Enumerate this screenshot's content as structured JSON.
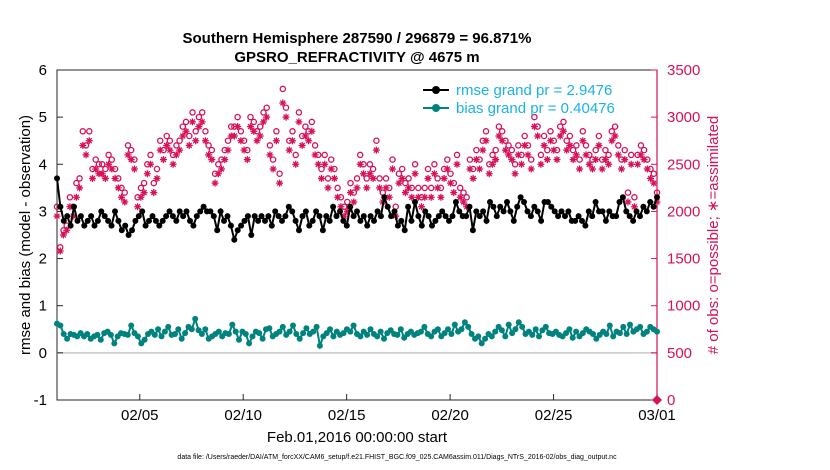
{
  "colors": {
    "rmse": "#000000",
    "bias": "#00837e",
    "obs": "#d6115a",
    "legend_text": "#1ab3e6",
    "zero_line": "#c8c8c8",
    "axis": "#262626"
  },
  "chart_data": {
    "type": "line",
    "title": "Southern Hemisphere 287590 / 296879 = 96.871%",
    "subtitle": "GPSRO_REFRACTIVITY @ 4675 m",
    "xlabel": "Feb.01,2016 00:00:00 start",
    "ylabel_left": "rmse and bias (model - observation)",
    "ylabel_right": "# of obs: o=possible; ∗=assimilated",
    "footnote": "data file: /Users/raeder/DAI/ATM_forcXX/CAM6_setup/f.e21.FHIST_BGC.f09_025.CAM6assim.011/Diags_NTrS_2016-02/obs_diag_output.nc",
    "x_range_days": [
      0,
      29
    ],
    "x_ticks": [
      {
        "day": 4,
        "label": "02/05"
      },
      {
        "day": 9,
        "label": "02/10"
      },
      {
        "day": 14,
        "label": "02/15"
      },
      {
        "day": 19,
        "label": "02/20"
      },
      {
        "day": 24,
        "label": "02/25"
      },
      {
        "day": 29,
        "label": "03/01"
      }
    ],
    "ylim_left": [
      -1,
      6
    ],
    "yticks_left": [
      "-1",
      "0",
      "1",
      "2",
      "3",
      "4",
      "5",
      "6"
    ],
    "ylim_right": [
      0,
      3500
    ],
    "yticks_right": [
      "0",
      "500",
      "1000",
      "1500",
      "2000",
      "2500",
      "3000",
      "3500"
    ],
    "legend_position": "top-right",
    "series": [
      {
        "name": "rmse grand pr = 2.9476",
        "marker": "filled-circle",
        "axis": "left",
        "values": [
          3.7,
          3.1,
          2.8,
          2.9,
          2.7,
          3.1,
          2.8,
          2.9,
          2.7,
          2.8,
          2.9,
          2.7,
          2.8,
          3.0,
          2.9,
          2.8,
          2.7,
          3.0,
          2.8,
          2.6,
          2.7,
          2.5,
          2.6,
          2.8,
          2.9,
          3.0,
          2.7,
          2.8,
          2.9,
          2.8,
          2.7,
          2.8,
          2.9,
          3.0,
          2.9,
          2.8,
          3.0,
          2.9,
          3.0,
          2.8,
          2.7,
          2.9,
          3.0,
          3.1,
          3.0,
          3.0,
          2.9,
          2.6,
          3.0,
          2.8,
          2.9,
          2.7,
          2.4,
          2.6,
          2.7,
          2.8,
          2.9,
          2.5,
          2.9,
          2.8,
          2.9,
          2.8,
          2.9,
          2.7,
          3.0,
          2.9,
          2.8,
          2.9,
          3.1,
          3.0,
          2.8,
          2.6,
          2.9,
          3.0,
          2.7,
          2.8,
          3.0,
          2.9,
          2.6,
          2.9,
          2.8,
          3.1,
          2.9,
          3.0,
          2.8,
          2.7,
          3.1,
          2.9,
          3.0,
          2.8,
          2.9,
          2.7,
          2.9,
          2.8,
          3.0,
          2.9,
          3.3,
          3.1,
          2.9,
          3.0,
          2.7,
          2.8,
          2.6,
          3.1,
          2.8,
          3.2,
          2.9,
          2.7,
          3.0,
          2.9,
          2.7,
          2.8,
          2.9,
          3.0,
          2.9,
          2.8,
          2.9,
          3.2,
          3.0,
          2.9,
          2.9,
          3.1,
          2.6,
          3.0,
          2.9,
          3.0,
          2.8,
          3.2,
          3.1,
          2.9,
          3.1,
          3.0,
          3.2,
          3.0,
          2.8,
          3.1,
          3.3,
          3.2,
          3.0,
          2.9,
          3.1,
          3.0,
          2.8,
          3.2,
          3.2,
          3.1,
          3.0,
          2.9,
          3.0,
          2.9,
          3.0,
          2.8,
          2.8,
          2.9,
          2.8,
          2.7,
          3.0,
          2.9,
          3.2,
          3.0,
          3.0,
          2.8,
          3.0,
          2.9,
          2.9,
          3.2,
          3.3,
          3.0,
          2.9,
          2.8,
          3.0,
          2.9,
          3.1,
          3.0,
          3.2,
          3.1,
          3.3
        ]
      },
      {
        "name": "bias grand pr = 0.40476",
        "marker": "filled-circle",
        "axis": "left",
        "values": [
          0.62,
          0.58,
          0.4,
          0.3,
          0.4,
          0.38,
          0.35,
          0.42,
          0.35,
          0.4,
          0.3,
          0.35,
          0.38,
          0.28,
          0.42,
          0.45,
          0.38,
          0.2,
          0.35,
          0.42,
          0.4,
          0.38,
          0.58,
          0.42,
          0.35,
          0.2,
          0.28,
          0.4,
          0.45,
          0.38,
          0.5,
          0.35,
          0.45,
          0.55,
          0.38,
          0.4,
          0.5,
          0.3,
          0.42,
          0.55,
          0.5,
          0.72,
          0.48,
          0.4,
          0.5,
          0.3,
          0.35,
          0.4,
          0.45,
          0.35,
          0.42,
          0.4,
          0.6,
          0.45,
          0.28,
          0.45,
          0.4,
          0.2,
          0.35,
          0.45,
          0.42,
          0.3,
          0.5,
          0.52,
          0.35,
          0.4,
          0.45,
          0.55,
          0.38,
          0.45,
          0.58,
          0.4,
          0.3,
          0.42,
          0.52,
          0.4,
          0.45,
          0.55,
          0.15,
          0.35,
          0.42,
          0.5,
          0.35,
          0.45,
          0.38,
          0.42,
          0.5,
          0.45,
          0.58,
          0.4,
          0.35,
          0.45,
          0.38,
          0.5,
          0.4,
          0.35,
          0.45,
          0.3,
          0.42,
          0.48,
          0.4,
          0.38,
          0.5,
          0.32,
          0.4,
          0.45,
          0.38,
          0.42,
          0.45,
          0.55,
          0.4,
          0.35,
          0.45,
          0.5,
          0.35,
          0.42,
          0.5,
          0.4,
          0.6,
          0.45,
          0.5,
          0.65,
          0.55,
          0.4,
          0.3,
          0.35,
          0.2,
          0.3,
          0.4,
          0.35,
          0.45,
          0.55,
          0.48,
          0.35,
          0.6,
          0.42,
          0.5,
          0.65,
          0.55,
          0.4,
          0.45,
          0.38,
          0.5,
          0.35,
          0.48,
          0.55,
          0.42,
          0.4,
          0.45,
          0.38,
          0.35,
          0.42,
          0.5,
          0.32,
          0.45,
          0.35,
          0.42,
          0.5,
          0.45,
          0.4,
          0.3,
          0.38,
          0.45,
          0.4,
          0.58,
          0.35,
          0.45,
          0.42,
          0.55,
          0.4,
          0.6,
          0.45,
          0.5,
          0.55,
          0.4,
          0.45,
          0.55,
          0.5,
          0.45
        ]
      },
      {
        "name": "possible",
        "marker": "circle",
        "axis": "right",
        "values": [
          2050,
          1620,
          1800,
          1850,
          2150,
          2050,
          2300,
          2350,
          2850,
          2700,
          2850,
          2450,
          2550,
          2500,
          2500,
          2450,
          2600,
          2550,
          2450,
          2350,
          2250,
          2200,
          2700,
          2650,
          2550,
          2150,
          2250,
          2300,
          2500,
          2600,
          2300,
          2450,
          2750,
          2650,
          2800,
          2750,
          2600,
          2700,
          2750,
          2900,
          2950,
          2800,
          3050,
          2850,
          3000,
          3050,
          2850,
          2700,
          2650,
          2400,
          2500,
          2550,
          2650,
          2750,
          2900,
          2900,
          3000,
          2850,
          2750,
          2650,
          3000,
          2950,
          2850,
          2900,
          3050,
          3100,
          2700,
          2550,
          2850,
          2400,
          3300,
          3100,
          2750,
          2850,
          2600,
          3050,
          2800,
          2900,
          2850,
          2950,
          2700,
          2600,
          2450,
          2600,
          2350,
          2550,
          2450,
          2250,
          2150,
          2050,
          2100,
          2300,
          2200,
          2350,
          2600,
          2500,
          2350,
          2500,
          2450,
          2750,
          2350,
          2200,
          2350,
          2250,
          2550,
          2050,
          2400,
          2450,
          2300,
          2350,
          2250,
          2500,
          2250,
          2150,
          2250,
          2450,
          2250,
          2500,
          2350,
          2250,
          2450,
          2550,
          2400,
          2300,
          2600,
          2250,
          2200,
          2150,
          2550,
          2450,
          2650,
          2550,
          2750,
          2850,
          2500,
          2600,
          2650,
          2900,
          2850,
          2750,
          2700,
          2650,
          2500,
          2700,
          2600,
          2800,
          2700,
          2550,
          3000,
          2900,
          2600,
          2800,
          2650,
          2850,
          2750,
          2650,
          2900,
          2950,
          2750,
          2800,
          2650,
          2700,
          2550,
          2850,
          2700,
          2600,
          2550,
          2650,
          2800,
          2550,
          2650,
          2600,
          2850,
          2900,
          2700,
          2550,
          2650,
          2200,
          2600,
          2150,
          2600,
          2700,
          2650,
          2550,
          2450,
          2400,
          2200
        ]
      },
      {
        "name": "assimilated",
        "marker": "asterisk",
        "axis": "right",
        "values": [
          1950,
          1580,
          1750,
          1800,
          2050,
          1950,
          2150,
          2250,
          2700,
          2600,
          2750,
          2350,
          2450,
          2400,
          2400,
          2350,
          2500,
          2450,
          2350,
          2250,
          2150,
          2100,
          2600,
          2550,
          2450,
          2050,
          2150,
          2200,
          2400,
          2500,
          2200,
          2350,
          2650,
          2550,
          2700,
          2650,
          2500,
          2600,
          2650,
          2800,
          2850,
          2700,
          2950,
          2750,
          2900,
          2950,
          2750,
          2600,
          2550,
          2300,
          2400,
          2450,
          2550,
          2650,
          2800,
          2800,
          2900,
          2750,
          2650,
          2550,
          2900,
          2850,
          2750,
          2800,
          2950,
          3000,
          2600,
          2450,
          2750,
          2300,
          3150,
          3000,
          2650,
          2750,
          2500,
          2950,
          2700,
          2800,
          2750,
          2850,
          2600,
          2500,
          2350,
          2500,
          2250,
          2450,
          2350,
          2150,
          2050,
          1950,
          2000,
          2200,
          2100,
          2250,
          2500,
          2400,
          2250,
          2400,
          2350,
          2650,
          2250,
          2100,
          2250,
          2150,
          2450,
          1950,
          2300,
          2350,
          2200,
          2250,
          2150,
          2400,
          2150,
          2050,
          2150,
          2350,
          2150,
          2400,
          2250,
          2150,
          2350,
          2450,
          2300,
          2200,
          2500,
          2150,
          2100,
          2050,
          2450,
          2350,
          2550,
          2450,
          2650,
          2750,
          2400,
          2500,
          2550,
          2800,
          2750,
          2650,
          2600,
          2550,
          2400,
          2600,
          2500,
          2700,
          2600,
          2450,
          2900,
          2800,
          2500,
          2700,
          2550,
          2750,
          2650,
          2550,
          2800,
          2850,
          2650,
          2700,
          2550,
          2600,
          2450,
          2750,
          2600,
          2500,
          2450,
          2550,
          2700,
          2450,
          2550,
          2500,
          2750,
          2800,
          2600,
          2450,
          2550,
          2100,
          2500,
          2050,
          2500,
          2600,
          2550,
          2450,
          2350,
          2300,
          2100
        ]
      }
    ],
    "extra_points": [
      {
        "name": "final-obs-marker",
        "x_day": 29,
        "value_right": 0
      }
    ]
  }
}
